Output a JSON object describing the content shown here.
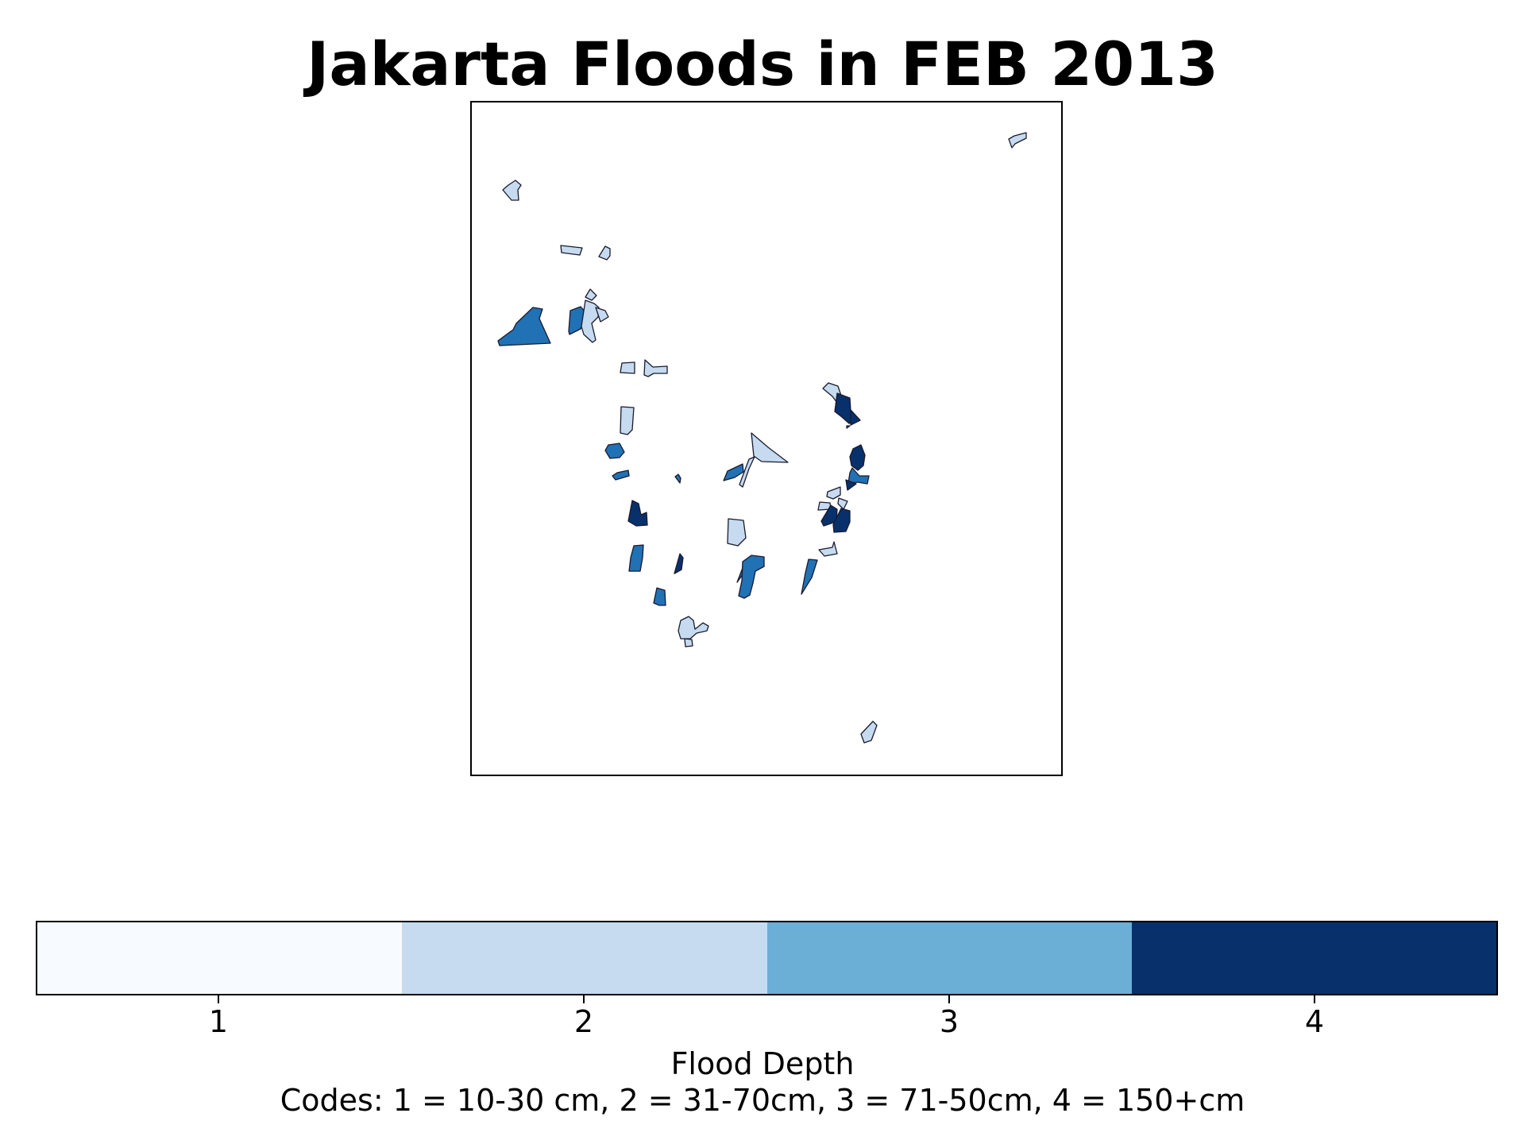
{
  "title": "Jakarta Floods in FEB 2013",
  "colors": {
    "class_1": "#f7fbff",
    "class_2": "#c6dbef",
    "class_3": "#6baed6",
    "class_4": "#08306b",
    "region_fill_light": "#c6dbef",
    "region_fill_mid": "#2171b5",
    "region_fill_dark": "#08306b"
  },
  "legend": {
    "title": "Flood Depth",
    "note": "Codes: 1 = 10-30 cm, 2 = 31-70cm, 3 = 71-50cm, 4 = 150+cm",
    "ticks": [
      "1",
      "2",
      "3",
      "4"
    ]
  }
}
